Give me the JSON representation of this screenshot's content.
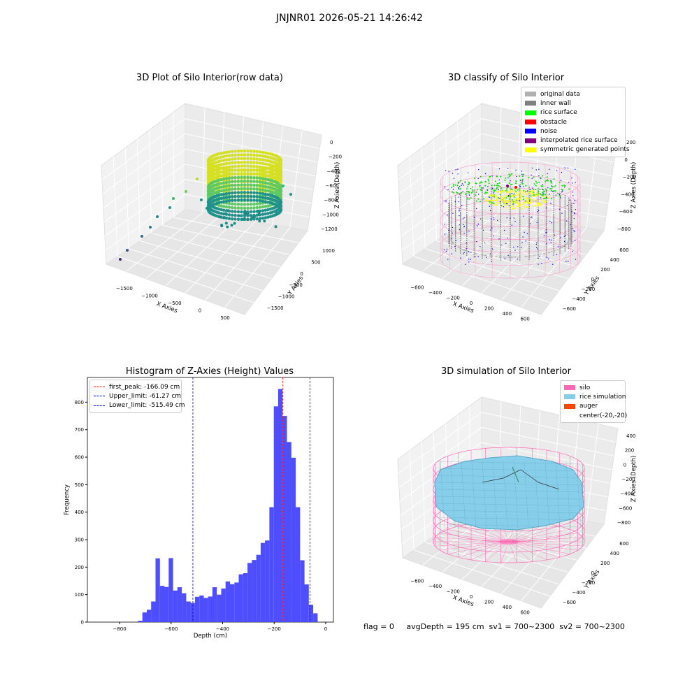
{
  "suptitle": "JNJNR01 2026-05-21 14:26:42",
  "footer": "flag = 0     avgDepth = 195 cm  sv1 = 700~2300  sv2 = 700~2300",
  "panels": {
    "raw": {
      "title": "3D Plot of Silo Interior(row data)",
      "xlabel": "X Axies",
      "ylabel": "Y Axies",
      "zlabel": "Z Axies (Depth)",
      "xticks": [
        "−1500",
        "−1000",
        "−500",
        "0",
        "500"
      ],
      "yticks": [
        "1000",
        "500",
        "0",
        "−500",
        "−1000",
        "−1500"
      ],
      "zticks": [
        "0",
        "−200",
        "−400",
        "−600",
        "−800",
        "−1000",
        "−1200"
      ]
    },
    "classify": {
      "title": "3D classify of Silo Interior",
      "xlabel": "X Axies",
      "ylabel": "Y Axies",
      "zlabel": "Z Axies (Depth)",
      "xticks": [
        "−600",
        "−400",
        "−200",
        "0",
        "200",
        "400",
        "600"
      ],
      "yticks": [
        "600",
        "400",
        "200",
        "0",
        "−200",
        "−400",
        "−600"
      ],
      "zticks": [
        "200",
        "0",
        "−200",
        "−400",
        "−600",
        "−800"
      ],
      "legend": [
        {
          "label": "original data",
          "color": "#b0b0b0"
        },
        {
          "label": "inner wall",
          "color": "#808080"
        },
        {
          "label": "rice surface",
          "color": "#00ff00"
        },
        {
          "label": "obstacle",
          "color": "#ff0000"
        },
        {
          "label": "noise",
          "color": "#0000ff"
        },
        {
          "label": "interpolated rice surface",
          "color": "#800080"
        },
        {
          "label": "symmetric generated points",
          "color": "#ffff00"
        }
      ]
    },
    "simulation": {
      "title": "3D simulation of Silo Interior",
      "xlabel": "X Axies",
      "ylabel": "Y Axies",
      "zlabel": "Z Axies (Depth)",
      "xticks": [
        "−600",
        "−400",
        "−200",
        "0",
        "200",
        "400",
        "600"
      ],
      "yticks": [
        "600",
        "400",
        "200",
        "0",
        "−200",
        "−400",
        "−600"
      ],
      "zticks": [
        "400",
        "200",
        "0",
        "−200",
        "−400",
        "−600",
        "−800"
      ],
      "legend": [
        {
          "label": "silo",
          "color": "#ff69b4"
        },
        {
          "label": "rice simulation",
          "color": "#87ceeb"
        },
        {
          "label": "auger",
          "color": "#ff4500"
        },
        {
          "label": "center(-20,-20)",
          "color": ""
        }
      ]
    }
  },
  "chart_data": {
    "type": "bar",
    "title": "Histogram of Z-Axies (Height) Values",
    "xlabel": "Depth (cm)",
    "ylabel": "Frequency",
    "xlim": [
      -925,
      30
    ],
    "ylim": [
      0,
      890
    ],
    "xticks": [
      -800,
      -600,
      -400,
      -200,
      0
    ],
    "yticks": [
      0,
      100,
      200,
      300,
      400,
      500,
      600,
      700,
      800
    ],
    "bin_width": 17,
    "bins": [
      {
        "x": -720,
        "v": 5
      },
      {
        "x": -703,
        "v": 35
      },
      {
        "x": -686,
        "v": 45
      },
      {
        "x": -669,
        "v": 75
      },
      {
        "x": -652,
        "v": 232
      },
      {
        "x": -635,
        "v": 132
      },
      {
        "x": -618,
        "v": 128
      },
      {
        "x": -601,
        "v": 233
      },
      {
        "x": -584,
        "v": 115
      },
      {
        "x": -567,
        "v": 127
      },
      {
        "x": -550,
        "v": 105
      },
      {
        "x": -533,
        "v": 75
      },
      {
        "x": -516,
        "v": 70
      },
      {
        "x": -499,
        "v": 92
      },
      {
        "x": -482,
        "v": 97
      },
      {
        "x": -465,
        "v": 88
      },
      {
        "x": -448,
        "v": 93
      },
      {
        "x": -431,
        "v": 127
      },
      {
        "x": -414,
        "v": 100
      },
      {
        "x": -397,
        "v": 122
      },
      {
        "x": -380,
        "v": 148
      },
      {
        "x": -363,
        "v": 138
      },
      {
        "x": -346,
        "v": 144
      },
      {
        "x": -329,
        "v": 174
      },
      {
        "x": -312,
        "v": 178
      },
      {
        "x": -295,
        "v": 215
      },
      {
        "x": -278,
        "v": 226
      },
      {
        "x": -261,
        "v": 245
      },
      {
        "x": -244,
        "v": 288
      },
      {
        "x": -227,
        "v": 297
      },
      {
        "x": -210,
        "v": 418
      },
      {
        "x": -193,
        "v": 785
      },
      {
        "x": -176,
        "v": 848
      },
      {
        "x": -159,
        "v": 750
      },
      {
        "x": -142,
        "v": 655
      },
      {
        "x": -125,
        "v": 598
      },
      {
        "x": -108,
        "v": 418
      },
      {
        "x": -91,
        "v": 225
      },
      {
        "x": -74,
        "v": 137
      },
      {
        "x": -57,
        "v": 63
      },
      {
        "x": -40,
        "v": 32
      }
    ],
    "bar_color": "#4444ff",
    "lines": [
      {
        "name": "first_peak: -166.09 cm",
        "x": -166.09,
        "color": "#ff0000"
      },
      {
        "name": "Upper_limit: -61.27 cm",
        "x": -61.27,
        "color": "#0000ff"
      },
      {
        "name": "Lower_limit: -515.49 cm",
        "x": -515.49,
        "color": "#0000ff"
      }
    ]
  }
}
